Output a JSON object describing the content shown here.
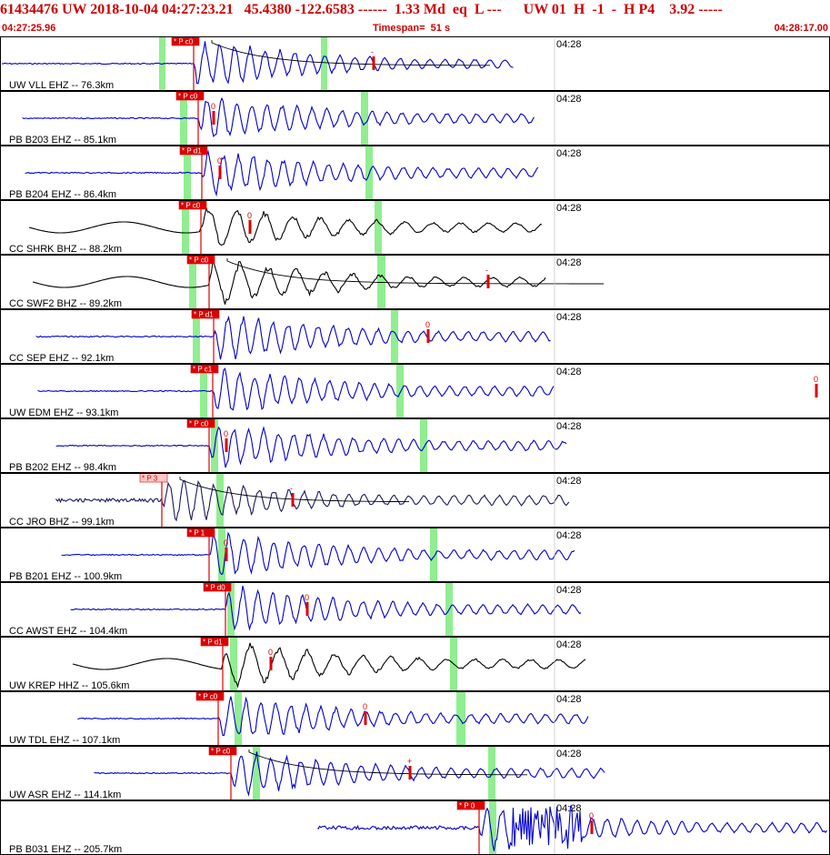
{
  "header": {
    "event_line": "61434476 UW 2018-10-04 04:27:23.21   45.4380 -122.6583 ------  1.33 Md  eq  L ---      UW 01  H  -1  -  H P4    3.92 -----",
    "start_time": "04:27:25.96",
    "timespan": "Timespan=  51 s",
    "end_time": "04:28:17.00"
  },
  "time_mark_label": "04:28",
  "colors": {
    "header_red": "#cc0000",
    "pick_red": "#dd0000",
    "trace_blue": "#0000cc",
    "trace_black": "#000000",
    "trace_navy": "#1a1a5e",
    "window_green": "#90ee90",
    "coda_line": "#000000"
  },
  "icons": {
    "pick_marker": "red-flag-label",
    "amplitude_marker": "red-tick"
  },
  "traces": [
    {
      "label": "UW VLL EHZ -- 76.3km",
      "pick": "* P c0",
      "pick_style": "solid",
      "amp_mark": "-",
      "color": "blue"
    },
    {
      "label": "PB B203 EHZ -- 85.1km",
      "pick": "* P c0",
      "pick_style": "solid",
      "amp_mark": "0",
      "color": "blue"
    },
    {
      "label": "PB B204 EHZ -- 86.4km",
      "pick": "* P d1",
      "pick_style": "solid",
      "amp_mark": "0",
      "color": "blue"
    },
    {
      "label": "CC SHRK BHZ -- 88.2km",
      "pick": "* P c0",
      "pick_style": "solid",
      "amp_mark": "0",
      "color": "black"
    },
    {
      "label": "CC SWF2 BHZ -- 89.2km",
      "pick": "* P c0",
      "pick_style": "solid",
      "amp_mark": "-",
      "color": "black"
    },
    {
      "label": "CC SEP EHZ -- 92.1km",
      "pick": "* P d1",
      "pick_style": "solid",
      "amp_mark": "0",
      "color": "blue"
    },
    {
      "label": "UW EDM EHZ -- 93.1km",
      "pick": "* P c1",
      "pick_style": "solid",
      "amp_mark": "0",
      "color": "blue"
    },
    {
      "label": "PB B202 EHZ -- 98.4km",
      "pick": "* P c0",
      "pick_style": "solid",
      "amp_mark": "0",
      "color": "blue"
    },
    {
      "label": "CC JRO BHZ -- 99.1km",
      "pick": "* P 3",
      "pick_style": "light",
      "amp_mark": "-",
      "color": "navy"
    },
    {
      "label": "PB B201 EHZ -- 100.9km",
      "pick": "* P 1",
      "pick_style": "solid",
      "amp_mark": "0",
      "color": "blue"
    },
    {
      "label": "CC AWST EHZ -- 104.4km",
      "pick": "* P d0",
      "pick_style": "solid",
      "amp_mark": "0",
      "color": "blue"
    },
    {
      "label": "UW KREP HHZ -- 105.6km",
      "pick": "* P d1",
      "pick_style": "solid",
      "amp_mark": "0",
      "color": "black"
    },
    {
      "label": "UW TDL EHZ -- 107.1km",
      "pick": "* P c0",
      "pick_style": "solid",
      "amp_mark": "0",
      "color": "blue"
    },
    {
      "label": "UW ASR EHZ -- 114.1km",
      "pick": "* P c0",
      "pick_style": "solid",
      "amp_mark": "+",
      "color": "blue"
    },
    {
      "label": "PB B031 EHZ -- 205.7km",
      "pick": "* P 0",
      "pick_style": "solid",
      "amp_mark": "0",
      "color": "blue"
    }
  ]
}
